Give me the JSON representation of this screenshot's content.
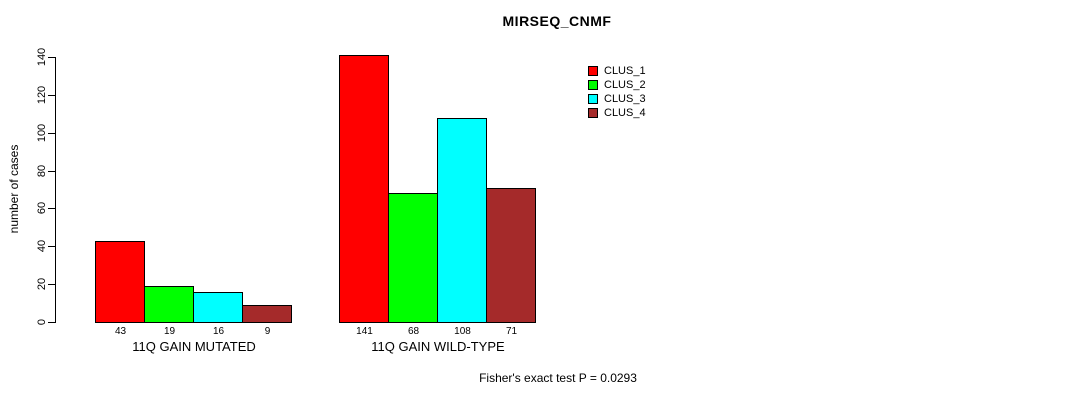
{
  "chart_data": {
    "type": "bar",
    "title": "MIRSEQ_CNMF",
    "ylabel": "number of cases",
    "ylim": [
      0,
      140
    ],
    "yticks": [
      0,
      20,
      40,
      60,
      80,
      100,
      120,
      140
    ],
    "grid": false,
    "background": "#ffffff",
    "bar_border_color": "#000000",
    "categories": [
      "11Q GAIN MUTATED",
      "11Q GAIN WILD-TYPE"
    ],
    "series": [
      {
        "name": "CLUS_1",
        "color": "#ff0000",
        "values": [
          43,
          141
        ]
      },
      {
        "name": "CLUS_2",
        "color": "#00ff00",
        "values": [
          19,
          68
        ]
      },
      {
        "name": "CLUS_3",
        "color": "#00ffff",
        "values": [
          16,
          108
        ]
      },
      {
        "name": "CLUS_4",
        "color": "#a52a2a",
        "values": [
          9,
          71
        ]
      }
    ],
    "bar_value_labels": [
      [
        "43",
        "19",
        "16",
        "9"
      ],
      [
        "141",
        "68",
        "108",
        "71"
      ]
    ],
    "legend": {
      "position": "top-right",
      "entries": [
        "CLUS_1",
        "CLUS_2",
        "CLUS_3",
        "CLUS_4"
      ]
    },
    "annotation": "Fisher's exact test P = 0.0293"
  }
}
